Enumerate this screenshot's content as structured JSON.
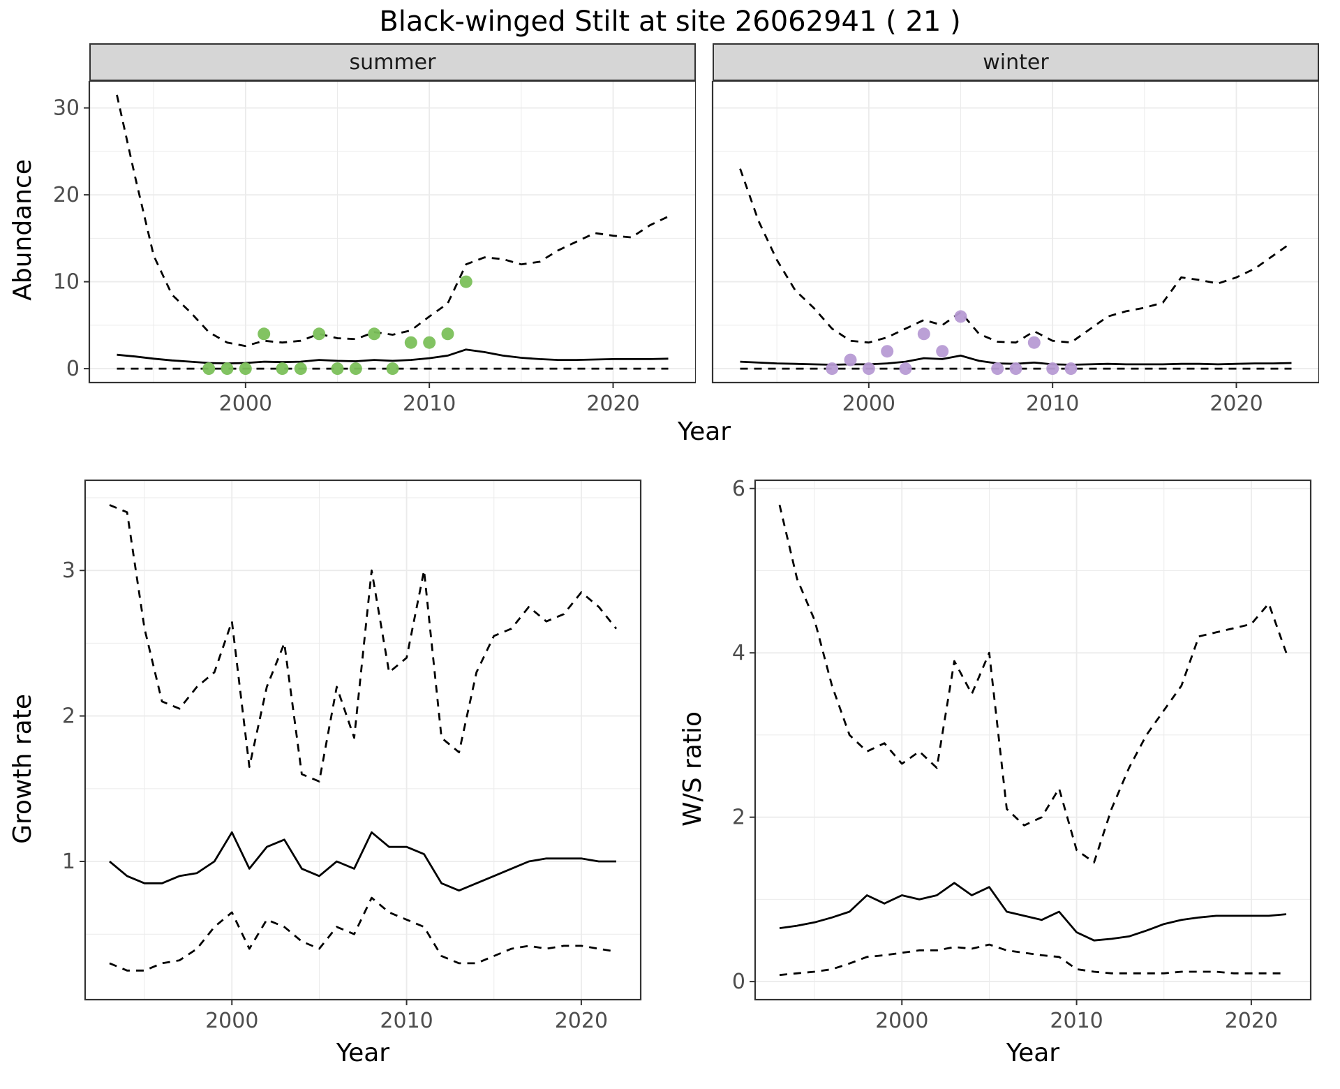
{
  "title": "Black-winged Stilt at site 26062941 ( 21 )",
  "theme": {
    "summer_point_color": "#7BC05A",
    "winter_point_color": "#B79BD4",
    "line_color": "#000000",
    "grid_color": "#EBEBEB",
    "panel_border_color": "#333333",
    "strip_bg": "#D6D6D6",
    "tick_label_color": "#4D4D4D"
  },
  "abundance": {
    "ylabel": "Abundance",
    "xlabel": "Year",
    "facets": [
      {
        "label": "summer"
      },
      {
        "label": "winter"
      }
    ]
  },
  "growth": {
    "ylabel": "Growth rate",
    "xlabel": "Year"
  },
  "ratio": {
    "ylabel": "W/S ratio",
    "xlabel": "Year"
  },
  "chart_data": [
    {
      "id": "abundance-summer",
      "type": "line+scatter",
      "title": "summer",
      "xlabel": "Year",
      "ylabel": "Abundance",
      "grid": true,
      "legend_position": "none",
      "xlim": [
        1991.5,
        2024.5
      ],
      "ylim": [
        -1.6,
        33.1
      ],
      "xticks": [
        2000,
        2010,
        2020
      ],
      "yticks": [
        0,
        10,
        20,
        30
      ],
      "x": [
        1993,
        1994,
        1995,
        1996,
        1997,
        1998,
        1999,
        2000,
        2001,
        2002,
        2003,
        2004,
        2005,
        2006,
        2007,
        2008,
        2009,
        2010,
        2011,
        2012,
        2013,
        2014,
        2015,
        2016,
        2017,
        2018,
        2019,
        2020,
        2021,
        2022,
        2023
      ],
      "series": [
        {
          "name": "upper_95ci",
          "style": "dashed",
          "values": [
            31.5,
            22,
            13,
            8.5,
            6.5,
            4.2,
            3,
            2.6,
            3.2,
            3,
            3.2,
            4,
            3.5,
            3.4,
            4.2,
            3.9,
            4.4,
            6,
            7.5,
            12,
            12.8,
            12.6,
            12,
            12.3,
            13.6,
            14.6,
            15.6,
            15.3,
            15.1,
            16.5,
            17.5
          ]
        },
        {
          "name": "fitted_abundance",
          "style": "solid",
          "values": [
            1.6,
            1.4,
            1.15,
            0.95,
            0.8,
            0.65,
            0.6,
            0.65,
            0.8,
            0.75,
            0.8,
            1,
            0.9,
            0.85,
            1,
            0.9,
            1,
            1.2,
            1.5,
            2.2,
            1.9,
            1.5,
            1.25,
            1.1,
            1,
            1,
            1.05,
            1.1,
            1.1,
            1.1,
            1.15
          ]
        },
        {
          "name": "lower_95ci",
          "style": "dashed",
          "values": [
            0,
            0,
            0,
            0,
            0,
            0,
            0,
            0,
            0,
            0,
            0,
            0,
            0,
            0,
            0,
            0,
            0,
            0,
            0,
            0,
            0,
            0,
            0,
            0,
            0,
            0,
            0,
            0,
            0,
            0,
            0
          ]
        }
      ],
      "points": {
        "name": "observed_counts",
        "color": "#7BC05A",
        "x": [
          1998,
          1999,
          2000,
          2001,
          2002,
          2003,
          2004,
          2005,
          2006,
          2007,
          2008,
          2009,
          2010,
          2011,
          2012
        ],
        "y": [
          0,
          0,
          0,
          4,
          0,
          0,
          4,
          0,
          0,
          4,
          0,
          3,
          3,
          4,
          10
        ]
      }
    },
    {
      "id": "abundance-winter",
      "type": "line+scatter",
      "title": "winter",
      "xlabel": "Year",
      "ylabel": "Abundance",
      "grid": true,
      "legend_position": "none",
      "xlim": [
        1991.5,
        2024.5
      ],
      "ylim": [
        -1.6,
        33.1
      ],
      "xticks": [
        2000,
        2010,
        2020
      ],
      "yticks": [
        0,
        10,
        20,
        30
      ],
      "x": [
        1993,
        1994,
        1995,
        1996,
        1997,
        1998,
        1999,
        2000,
        2001,
        2002,
        2003,
        2004,
        2005,
        2006,
        2007,
        2008,
        2009,
        2010,
        2011,
        2012,
        2013,
        2014,
        2015,
        2016,
        2017,
        2018,
        2019,
        2020,
        2021,
        2022,
        2023
      ],
      "series": [
        {
          "name": "upper_95ci",
          "style": "dashed",
          "values": [
            23,
            17,
            12.5,
            9,
            7,
            4.6,
            3.2,
            3,
            3.6,
            4.6,
            5.6,
            5,
            6.5,
            4,
            3.1,
            3,
            4.3,
            3.2,
            3,
            4.5,
            6,
            6.6,
            7,
            7.6,
            10.5,
            10.2,
            9.8,
            10.5,
            11.5,
            13,
            14.5
          ]
        },
        {
          "name": "fitted_abundance",
          "style": "solid",
          "values": [
            0.8,
            0.7,
            0.6,
            0.55,
            0.5,
            0.45,
            0.5,
            0.5,
            0.6,
            0.8,
            1.2,
            1.1,
            1.5,
            0.9,
            0.6,
            0.55,
            0.7,
            0.5,
            0.45,
            0.5,
            0.55,
            0.5,
            0.5,
            0.5,
            0.55,
            0.55,
            0.5,
            0.55,
            0.6,
            0.6,
            0.65
          ]
        },
        {
          "name": "lower_95ci",
          "style": "dashed",
          "values": [
            0,
            0,
            0,
            0,
            0,
            0,
            0,
            0,
            0,
            0,
            0,
            0,
            0,
            0,
            0,
            0,
            0,
            0,
            0,
            0,
            0,
            0,
            0,
            0,
            0,
            0,
            0,
            0,
            0,
            0,
            0
          ]
        }
      ],
      "points": {
        "name": "observed_counts",
        "color": "#B79BD4",
        "x": [
          1998,
          1999,
          2000,
          2001,
          2002,
          2003,
          2004,
          2005,
          2007,
          2008,
          2009,
          2010,
          2011
        ],
        "y": [
          0,
          1,
          0,
          2,
          0,
          4,
          2,
          6,
          0,
          0,
          3,
          0,
          0
        ]
      }
    },
    {
      "id": "growth-rate",
      "type": "line",
      "title": "",
      "xlabel": "Year",
      "ylabel": "Growth rate",
      "grid": true,
      "legend_position": "none",
      "xlim": [
        1991.6,
        2023.4
      ],
      "ylim": [
        0.05,
        3.62
      ],
      "xticks": [
        2000,
        2010,
        2020
      ],
      "yticks": [
        1,
        2,
        3
      ],
      "x": [
        1993,
        1994,
        1995,
        1996,
        1997,
        1998,
        1999,
        2000,
        2001,
        2002,
        2003,
        2004,
        2005,
        2006,
        2007,
        2008,
        2009,
        2010,
        2011,
        2012,
        2013,
        2014,
        2015,
        2016,
        2017,
        2018,
        2019,
        2020,
        2021,
        2022
      ],
      "series": [
        {
          "name": "upper_95ci",
          "style": "dashed",
          "values": [
            3.45,
            3.4,
            2.6,
            2.1,
            2.05,
            2.2,
            2.3,
            2.65,
            1.65,
            2.2,
            2.5,
            1.6,
            1.55,
            2.2,
            1.85,
            3,
            2.3,
            2.4,
            3,
            1.85,
            1.75,
            2.3,
            2.55,
            2.6,
            2.75,
            2.65,
            2.7,
            2.85,
            2.75,
            2.6
          ]
        },
        {
          "name": "fitted_growth_rate",
          "style": "solid",
          "values": [
            1,
            0.9,
            0.85,
            0.85,
            0.9,
            0.92,
            1,
            1.2,
            0.95,
            1.1,
            1.15,
            0.95,
            0.9,
            1,
            0.95,
            1.2,
            1.1,
            1.1,
            1.05,
            0.85,
            0.8,
            0.85,
            0.9,
            0.95,
            1,
            1.02,
            1.02,
            1.02,
            1,
            1
          ]
        },
        {
          "name": "lower_95ci",
          "style": "dashed",
          "values": [
            0.3,
            0.25,
            0.25,
            0.3,
            0.32,
            0.4,
            0.55,
            0.65,
            0.4,
            0.6,
            0.55,
            0.45,
            0.4,
            0.55,
            0.5,
            0.75,
            0.65,
            0.6,
            0.55,
            0.35,
            0.3,
            0.3,
            0.35,
            0.4,
            0.42,
            0.4,
            0.42,
            0.42,
            0.4,
            0.38
          ]
        }
      ]
    },
    {
      "id": "ws-ratio",
      "type": "line",
      "title": "",
      "xlabel": "Year",
      "ylabel": "W/S ratio",
      "grid": true,
      "legend_position": "none",
      "xlim": [
        1991.6,
        2023.4
      ],
      "ylim": [
        -0.22,
        6.1
      ],
      "xticks": [
        2000,
        2010,
        2020
      ],
      "yticks": [
        0,
        2,
        4,
        6
      ],
      "x": [
        1993,
        1994,
        1995,
        1996,
        1997,
        1998,
        1999,
        2000,
        2001,
        2002,
        2003,
        2004,
        2005,
        2006,
        2007,
        2008,
        2009,
        2010,
        2011,
        2012,
        2013,
        2014,
        2015,
        2016,
        2017,
        2018,
        2019,
        2020,
        2021,
        2022
      ],
      "series": [
        {
          "name": "upper_95ci",
          "style": "dashed",
          "values": [
            5.8,
            4.9,
            4.4,
            3.6,
            3,
            2.8,
            2.9,
            2.65,
            2.8,
            2.6,
            3.9,
            3.5,
            4,
            2.1,
            1.9,
            2,
            2.35,
            1.6,
            1.45,
            2.1,
            2.6,
            3,
            3.3,
            3.6,
            4.2,
            4.25,
            4.3,
            4.35,
            4.6,
            4
          ]
        },
        {
          "name": "fitted_ws_ratio",
          "style": "solid",
          "values": [
            0.65,
            0.68,
            0.72,
            0.78,
            0.85,
            1.05,
            0.95,
            1.05,
            1,
            1.05,
            1.2,
            1.05,
            1.15,
            0.85,
            0.8,
            0.75,
            0.85,
            0.6,
            0.5,
            0.52,
            0.55,
            0.62,
            0.7,
            0.75,
            0.78,
            0.8,
            0.8,
            0.8,
            0.8,
            0.82
          ]
        },
        {
          "name": "lower_95ci",
          "style": "dashed",
          "values": [
            0.08,
            0.1,
            0.12,
            0.15,
            0.22,
            0.3,
            0.32,
            0.35,
            0.38,
            0.38,
            0.42,
            0.4,
            0.45,
            0.38,
            0.35,
            0.32,
            0.3,
            0.15,
            0.12,
            0.1,
            0.1,
            0.1,
            0.1,
            0.12,
            0.12,
            0.12,
            0.1,
            0.1,
            0.1,
            0.1
          ]
        }
      ]
    }
  ]
}
